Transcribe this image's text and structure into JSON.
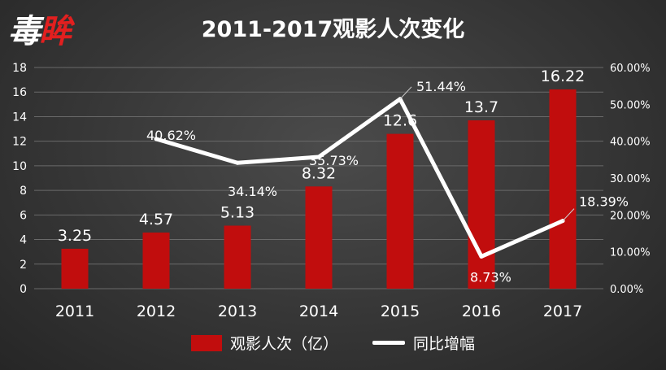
{
  "logo": {
    "text_main": "毒",
    "text_accent": "眸"
  },
  "chart_data": {
    "type": "bar",
    "title": "2011-2017观影人次变化",
    "categories": [
      "2011",
      "2012",
      "2013",
      "2014",
      "2015",
      "2016",
      "2017"
    ],
    "series": [
      {
        "name": "观影人次（亿）",
        "type": "bar",
        "axis": "left",
        "color": "#c10d0d",
        "values": [
          3.25,
          4.57,
          5.13,
          8.32,
          12.6,
          13.7,
          16.22
        ],
        "labels": [
          "3.25",
          "4.57",
          "5.13",
          "8.32",
          "12.6",
          "13.7",
          "16.22"
        ]
      },
      {
        "name": "同比增幅",
        "type": "line",
        "axis": "right",
        "color": "#ffffff",
        "values": [
          null,
          40.62,
          34.14,
          35.73,
          51.44,
          8.73,
          18.39
        ],
        "labels": [
          null,
          "40.62%",
          "34.14%",
          "35.73%",
          "51.44%",
          "8.73%",
          "18.39%"
        ]
      }
    ],
    "y_left": {
      "min": 0,
      "max": 18,
      "ticks": [
        "0",
        "2",
        "4",
        "6",
        "8",
        "10",
        "12",
        "14",
        "16",
        "18"
      ]
    },
    "y_right": {
      "min": 0,
      "max": 60,
      "ticks": [
        "0.00%",
        "10.00%",
        "20.00%",
        "30.00%",
        "40.00%",
        "50.00%",
        "60.00%"
      ]
    },
    "grid": true,
    "legend_position": "bottom",
    "colors": {
      "bar": "#c10d0d",
      "line": "#ffffff",
      "grid": "#6a6a6a",
      "text": "#ffffff"
    }
  }
}
